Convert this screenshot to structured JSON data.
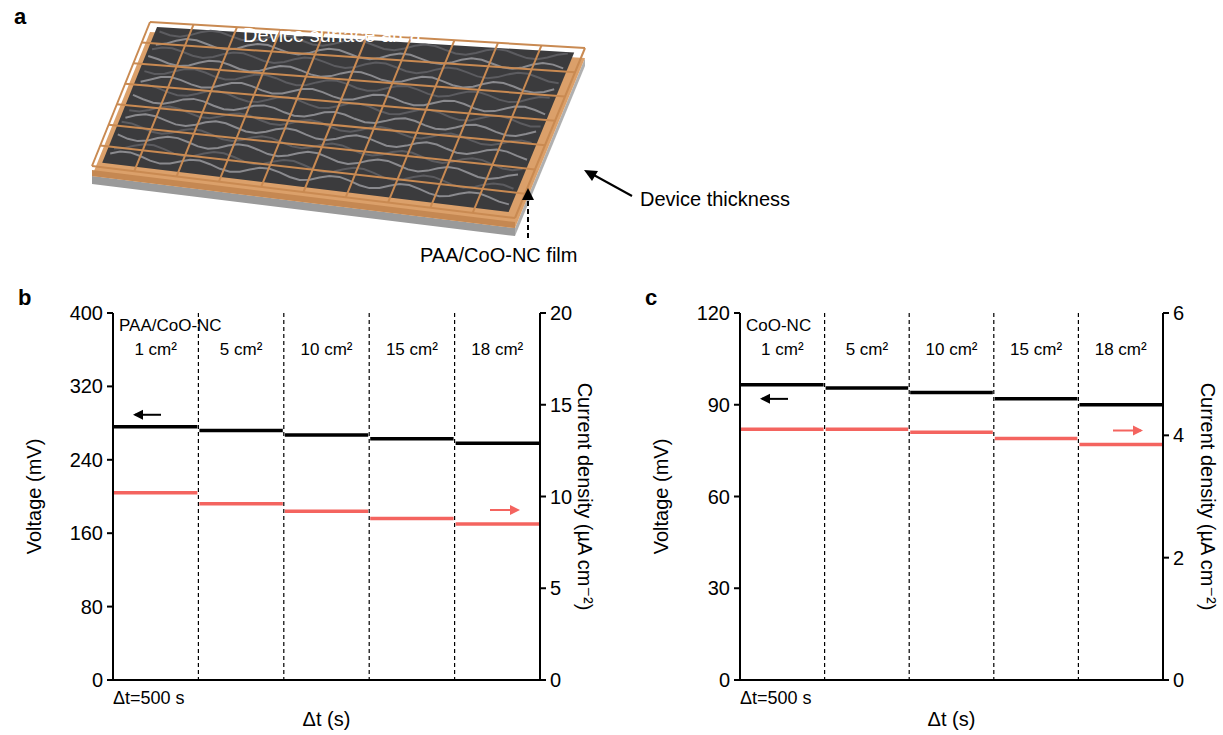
{
  "diagram": {
    "panel_label": "a",
    "labels": {
      "surface": "Device surface area",
      "thickness": "Device thickness",
      "film": "PAA/CoO-NC film"
    }
  },
  "chart_data": [
    {
      "type": "line",
      "panel_label": "b",
      "title": "PAA/CoO-NC",
      "annotation": "Δt=500 s",
      "x_label": "Δt (s)",
      "y_label": "Voltage (mV)",
      "y2_label": "Current density (µA cm⁻²)",
      "categories": [
        "1 cm²",
        "5 cm²",
        "10 cm²",
        "15 cm²",
        "18 cm²"
      ],
      "series": [
        {
          "color": "#000000",
          "axis": "y",
          "values": [
            276,
            272,
            267,
            263,
            258
          ]
        },
        {
          "color": "#f4645f",
          "axis": "y2",
          "values": [
            10.2,
            9.6,
            9.2,
            8.8,
            8.5
          ]
        }
      ],
      "ylim": [
        0,
        400
      ],
      "yticks": [
        0,
        80,
        160,
        240,
        320,
        400
      ],
      "y2lim": [
        0,
        20
      ],
      "y2ticks": [
        0,
        5,
        10,
        15,
        20
      ]
    },
    {
      "type": "line",
      "panel_label": "c",
      "title": "CoO-NC",
      "annotation": "Δt=500 s",
      "x_label": "Δt (s)",
      "y_label": "Voltage (mV)",
      "y2_label": "Current density (µA cm⁻²)",
      "categories": [
        "1 cm²",
        "5 cm²",
        "10 cm²",
        "15 cm²",
        "18 cm²"
      ],
      "series": [
        {
          "color": "#000000",
          "axis": "y",
          "values": [
            96.5,
            95.5,
            94,
            92,
            90
          ]
        },
        {
          "color": "#f4645f",
          "axis": "y2",
          "values": [
            4.1,
            4.1,
            4.05,
            3.95,
            3.85
          ]
        }
      ],
      "ylim": [
        0,
        120
      ],
      "yticks": [
        0,
        30,
        60,
        90,
        120
      ],
      "y2lim": [
        0,
        6
      ],
      "y2ticks": [
        0,
        2,
        4,
        6
      ]
    }
  ]
}
